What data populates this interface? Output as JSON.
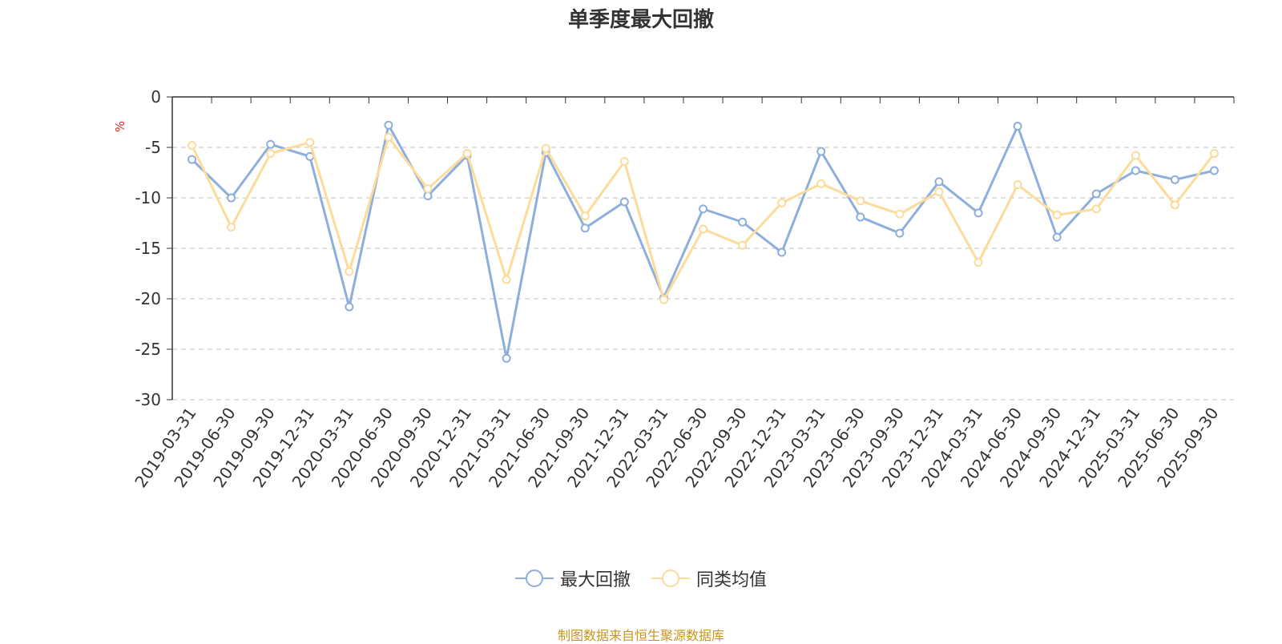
{
  "chart_data": {
    "type": "line",
    "title": "单季度最大回撤",
    "ylabel": "%",
    "xlabel": "",
    "ylim": [
      -30,
      0
    ],
    "yticks": [
      0,
      -5,
      -10,
      -15,
      -20,
      -25,
      -30
    ],
    "grid": true,
    "legend_position": "bottom",
    "categories": [
      "2019-03-31",
      "2019-06-30",
      "2019-09-30",
      "2019-12-31",
      "2020-03-31",
      "2020-06-30",
      "2020-09-30",
      "2020-12-31",
      "2021-03-31",
      "2021-06-30",
      "2021-09-30",
      "2021-12-31",
      "2022-03-31",
      "2022-06-30",
      "2022-09-30",
      "2022-12-31",
      "2023-03-31",
      "2023-06-30",
      "2023-09-30",
      "2023-12-31",
      "2024-03-31",
      "2024-06-30",
      "2024-09-30",
      "2024-12-31",
      "2025-03-31",
      "2025-06-30",
      "2025-09-30"
    ],
    "series": [
      {
        "name": "最大回撤",
        "color": "#8eaedb",
        "values": [
          -6.2,
          -10.0,
          -4.7,
          -5.9,
          -20.8,
          -2.8,
          -9.8,
          -5.8,
          -25.9,
          -5.5,
          -13.0,
          -10.4,
          -19.9,
          -11.1,
          -12.4,
          -15.4,
          -5.4,
          -11.9,
          -13.5,
          -8.4,
          -11.5,
          -2.9,
          -13.9,
          -9.6,
          -7.3,
          -8.2,
          -7.3
        ]
      },
      {
        "name": "同类均值",
        "color": "#fcdb9b",
        "values": [
          -4.8,
          -12.9,
          -5.6,
          -4.5,
          -17.3,
          -4.0,
          -9.1,
          -5.6,
          -18.1,
          -5.1,
          -11.8,
          -6.4,
          -20.1,
          -13.1,
          -14.7,
          -10.5,
          -8.6,
          -10.3,
          -11.6,
          -9.4,
          -16.4,
          -8.7,
          -11.7,
          -11.1,
          -5.8,
          -10.7,
          -5.6
        ]
      }
    ]
  },
  "source_note": "制图数据来自恒生聚源数据库"
}
